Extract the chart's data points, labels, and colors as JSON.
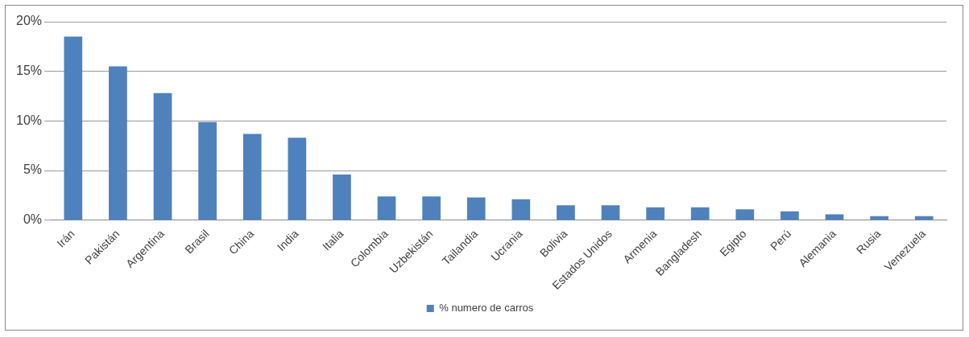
{
  "chart_data": {
    "type": "bar",
    "categories": [
      "Irán",
      "Pakistán",
      "Argentina",
      "Brasil",
      "China",
      "India",
      "Italia",
      "Colombia",
      "Uzbekistán",
      "Tailandia",
      "Ucrania",
      "Bolivia",
      "Estados Unidos",
      "Armenia",
      "Bangladesh",
      "Egipto",
      "Perú",
      "Alemania",
      "Rusia",
      "Venezuela"
    ],
    "series": [
      {
        "name": "% numero de carros",
        "color": "#4f81bd",
        "values": [
          18.5,
          15.5,
          12.8,
          9.9,
          8.7,
          8.3,
          4.6,
          2.4,
          2.4,
          2.3,
          2.1,
          1.5,
          1.5,
          1.3,
          1.3,
          1.1,
          0.9,
          0.6,
          0.4,
          0.4
        ]
      }
    ],
    "ylim": [
      0,
      20
    ],
    "yticks": [
      {
        "value": 0,
        "label": "0%"
      },
      {
        "value": 5,
        "label": "5%"
      },
      {
        "value": 10,
        "label": "10%"
      },
      {
        "value": 15,
        "label": "15%"
      },
      {
        "value": 20,
        "label": "20%"
      }
    ],
    "grid": "y",
    "legend": "bottom"
  }
}
